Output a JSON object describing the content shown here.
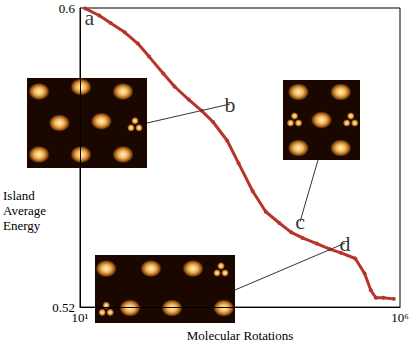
{
  "chart_data": {
    "type": "line",
    "x_label": "Molecular Rotations",
    "y_label": "Island Average Energy",
    "log": "x",
    "grid": false,
    "color": "#b8342a",
    "marker": "circle",
    "line_style": "solid",
    "xlim": [
      10,
      1000000
    ],
    "xticks": [
      {
        "value": 10,
        "label": "10¹"
      },
      {
        "value": 1000000,
        "label": "10⁶"
      }
    ],
    "ylim": [
      0.52,
      0.6
    ],
    "yticks": [
      0.52,
      0.6
    ],
    "x": [
      12,
      20,
      30,
      50,
      80,
      120,
      200,
      300,
      500,
      800,
      1200,
      2000,
      3000,
      5000,
      8000,
      13000,
      20000,
      30000,
      50000,
      80000,
      120000,
      200000,
      280000,
      350000,
      420000,
      550000,
      800000
    ],
    "values": [
      0.5999,
      0.598,
      0.596,
      0.5935,
      0.5905,
      0.587,
      0.5825,
      0.579,
      0.5755,
      0.5725,
      0.5695,
      0.5645,
      0.5585,
      0.551,
      0.5455,
      0.5425,
      0.54,
      0.5385,
      0.537,
      0.5355,
      0.5345,
      0.533,
      0.529,
      0.5245,
      0.5225,
      0.5225,
      0.5222
    ],
    "annotations": [
      {
        "text": "a",
        "x": 14,
        "y": 0.5975
      },
      {
        "text": "b",
        "x": 2200,
        "y": 0.5743
      },
      {
        "text": "c",
        "x": 27500,
        "y": 0.5429
      },
      {
        "text": "d",
        "x": 138000,
        "y": 0.5371
      }
    ]
  }
}
